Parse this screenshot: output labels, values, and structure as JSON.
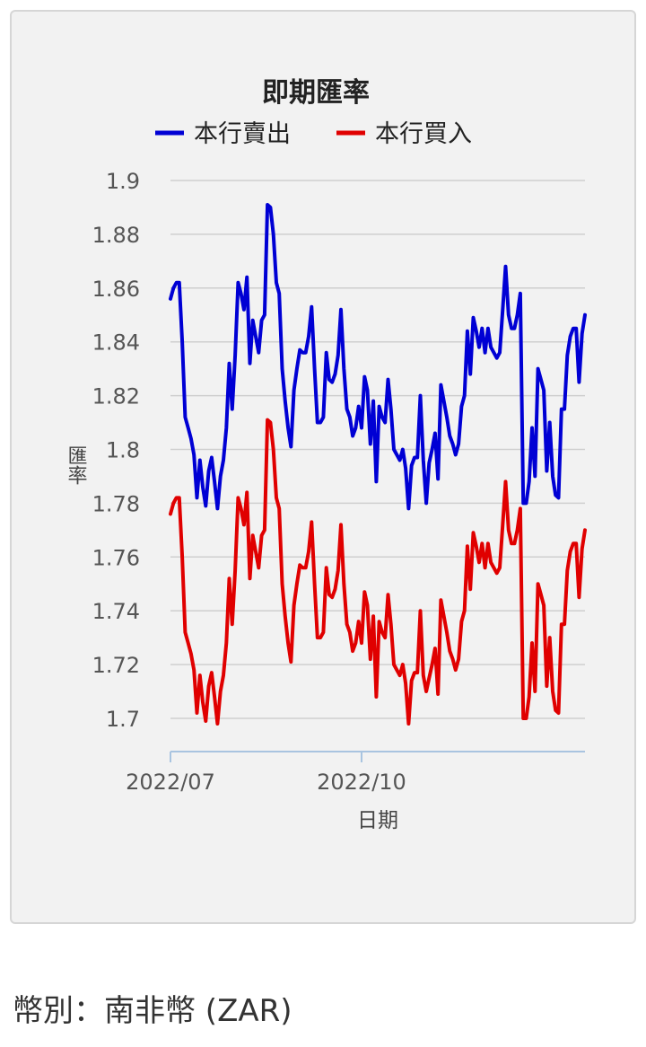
{
  "currency_label": "幣別：南非幣 (ZAR)",
  "chart_data": {
    "type": "line",
    "title": "即期匯率",
    "xlabel": "日期",
    "ylabel": "匯率",
    "ylim": [
      1.7,
      1.9
    ],
    "y_ticks": [
      "1.9",
      "1.88",
      "1.86",
      "1.84",
      "1.82",
      "1.8",
      "1.78",
      "1.76",
      "1.74",
      "1.72",
      "1.7"
    ],
    "x_ticks": [
      {
        "label": "2022/07",
        "index": 0
      },
      {
        "label": "2022/10",
        "index": 65
      }
    ],
    "legend_position": "top",
    "grid": true,
    "colors": {
      "sell": "#0000d4",
      "buy": "#e00000"
    },
    "series": [
      {
        "name": "本行賣出",
        "key": "sell",
        "values": [
          1.856,
          1.86,
          1.862,
          1.862,
          1.84,
          1.812,
          1.808,
          1.804,
          1.798,
          1.782,
          1.796,
          1.786,
          1.779,
          1.792,
          1.797,
          1.788,
          1.778,
          1.79,
          1.796,
          1.808,
          1.832,
          1.815,
          1.835,
          1.862,
          1.858,
          1.852,
          1.864,
          1.832,
          1.848,
          1.842,
          1.836,
          1.848,
          1.85,
          1.891,
          1.89,
          1.88,
          1.862,
          1.858,
          1.83,
          1.818,
          1.808,
          1.801,
          1.822,
          1.83,
          1.837,
          1.836,
          1.836,
          1.842,
          1.853,
          1.83,
          1.81,
          1.81,
          1.812,
          1.836,
          1.826,
          1.825,
          1.828,
          1.835,
          1.852,
          1.83,
          1.815,
          1.812,
          1.805,
          1.808,
          1.816,
          1.808,
          1.827,
          1.822,
          1.802,
          1.818,
          1.788,
          1.816,
          1.812,
          1.81,
          1.826,
          1.815,
          1.8,
          1.798,
          1.796,
          1.8,
          1.793,
          1.778,
          1.794,
          1.797,
          1.797,
          1.82,
          1.796,
          1.78,
          1.795,
          1.8,
          1.806,
          1.789,
          1.824,
          1.818,
          1.812,
          1.805,
          1.802,
          1.798,
          1.802,
          1.816,
          1.82,
          1.844,
          1.828,
          1.849,
          1.844,
          1.838,
          1.845,
          1.836,
          1.845,
          1.838,
          1.836,
          1.834,
          1.836,
          1.852,
          1.868,
          1.85,
          1.845,
          1.845,
          1.85,
          1.858,
          1.78,
          1.78,
          1.788,
          1.808,
          1.79,
          1.83,
          1.826,
          1.822,
          1.792,
          1.81,
          1.79,
          1.783,
          1.782,
          1.815,
          1.815,
          1.835,
          1.842,
          1.845,
          1.845,
          1.825,
          1.843,
          1.85
        ]
      },
      {
        "name": "本行買入",
        "key": "buy",
        "values": [
          1.776,
          1.78,
          1.782,
          1.782,
          1.76,
          1.732,
          1.728,
          1.724,
          1.718,
          1.702,
          1.716,
          1.706,
          1.699,
          1.712,
          1.717,
          1.708,
          1.698,
          1.71,
          1.716,
          1.728,
          1.752,
          1.735,
          1.755,
          1.782,
          1.778,
          1.772,
          1.784,
          1.752,
          1.768,
          1.762,
          1.756,
          1.768,
          1.77,
          1.811,
          1.81,
          1.8,
          1.782,
          1.778,
          1.75,
          1.738,
          1.728,
          1.721,
          1.742,
          1.75,
          1.757,
          1.756,
          1.756,
          1.762,
          1.773,
          1.75,
          1.73,
          1.73,
          1.732,
          1.756,
          1.746,
          1.745,
          1.748,
          1.755,
          1.772,
          1.75,
          1.735,
          1.732,
          1.725,
          1.728,
          1.736,
          1.728,
          1.747,
          1.742,
          1.722,
          1.738,
          1.708,
          1.736,
          1.732,
          1.73,
          1.746,
          1.735,
          1.72,
          1.718,
          1.716,
          1.72,
          1.713,
          1.698,
          1.714,
          1.717,
          1.717,
          1.74,
          1.716,
          1.71,
          1.715,
          1.72,
          1.726,
          1.709,
          1.744,
          1.738,
          1.732,
          1.725,
          1.722,
          1.718,
          1.722,
          1.736,
          1.74,
          1.764,
          1.748,
          1.769,
          1.764,
          1.758,
          1.765,
          1.756,
          1.765,
          1.758,
          1.756,
          1.754,
          1.756,
          1.772,
          1.788,
          1.77,
          1.765,
          1.765,
          1.77,
          1.778,
          1.7,
          1.7,
          1.708,
          1.728,
          1.71,
          1.75,
          1.746,
          1.742,
          1.712,
          1.73,
          1.71,
          1.703,
          1.702,
          1.735,
          1.735,
          1.755,
          1.762,
          1.765,
          1.765,
          1.745,
          1.763,
          1.77
        ]
      }
    ]
  }
}
